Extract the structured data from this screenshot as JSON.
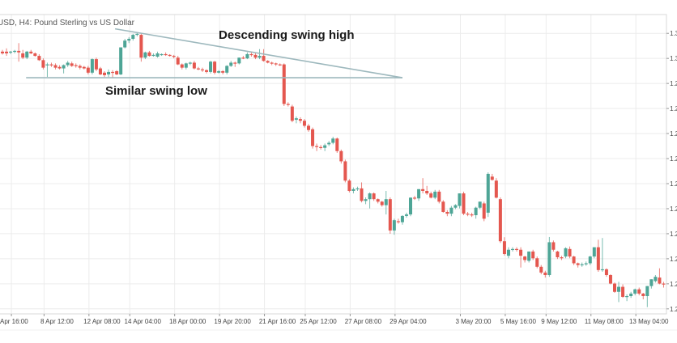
{
  "chart_data": {
    "type": "candlestick",
    "title": "USD, H4: Pound Sterling vs US Dollar",
    "colors": {
      "up": "#4ea596",
      "down": "#e4574f",
      "annotation_line": "#9db8bd",
      "grid": "#ececec"
    },
    "ylim": [
      1.198,
      1.3175
    ],
    "ytick_values": [
      1.31,
      1.3,
      1.29,
      1.28,
      1.27,
      1.26,
      1.25,
      1.24,
      1.23,
      1.22,
      1.21,
      1.2
    ],
    "ytick_labels": [
      "1.3",
      "1.3",
      "1.2",
      "1.2",
      "1.2",
      "1.2",
      "1.2",
      "1.2",
      "1.2",
      "1.2",
      "1.2",
      "1.2"
    ],
    "xtick_candle_index": [
      2,
      10,
      21,
      31,
      42,
      53,
      64,
      74,
      85,
      96,
      112,
      123,
      133,
      144,
      155
    ],
    "xtick_labels": [
      "Apr 16:00",
      "8 Apr 12:00",
      "12 Apr 08:00",
      "14 Apr 04:00",
      "18 Apr 00:00",
      "19 Apr 20:00",
      "21 Apr 16:00",
      "25 Apr 12:00",
      "27 Apr 08:00",
      "29 Apr 04:00",
      "3 May 20:00",
      "5 May 16:00",
      "9 May 12:00",
      "11 May 08:00",
      "13 May 04:00"
    ],
    "grid": true,
    "annotations": {
      "lines": [
        {
          "name": "descending-swing-high-line",
          "from": [
            27.6,
            1.3118
          ],
          "to": [
            98,
            1.2923
          ]
        },
        {
          "name": "similar-swing-low-line",
          "from": [
            5.8,
            1.2923
          ],
          "to": [
            98,
            1.2923
          ]
        }
      ],
      "labels": [
        "Descending swing high",
        "Similar swing low"
      ]
    },
    "candles_ohlc": [
      [
        1.3027,
        1.3034,
        1.3015,
        1.302
      ],
      [
        1.3027,
        1.304,
        1.301,
        1.302
      ],
      [
        1.3024,
        1.303,
        1.3017,
        1.3027
      ],
      [
        1.3027,
        1.3034,
        1.302,
        1.303
      ],
      [
        1.303,
        1.3061,
        1.2987,
        1.3024
      ],
      [
        1.302,
        1.3034,
        1.2997,
        1.3003
      ],
      [
        1.3003,
        1.303,
        1.2997,
        1.3027
      ],
      [
        1.3027,
        1.3034,
        1.3017,
        1.302
      ],
      [
        1.302,
        1.3024,
        1.3007,
        1.301
      ],
      [
        1.301,
        1.3017,
        1.299,
        1.2993
      ],
      [
        1.2993,
        1.3,
        1.2956,
        1.2963
      ],
      [
        1.2973,
        1.2983,
        1.2926,
        1.2976
      ],
      [
        1.2976,
        1.2983,
        1.2966,
        1.2973
      ],
      [
        1.2973,
        1.298,
        1.2956,
        1.2963
      ],
      [
        1.2966,
        1.2973,
        1.2956,
        1.296
      ],
      [
        1.296,
        1.2976,
        1.294,
        1.2973
      ],
      [
        1.2973,
        1.299,
        1.2966,
        1.2983
      ],
      [
        1.298,
        1.2987,
        1.2966,
        1.297
      ],
      [
        1.2973,
        1.298,
        1.2963,
        1.297
      ],
      [
        1.297,
        1.2976,
        1.2956,
        1.2963
      ],
      [
        1.2966,
        1.297,
        1.2956,
        1.296
      ],
      [
        1.2963,
        1.297,
        1.2936,
        1.2943
      ],
      [
        1.2943,
        1.3,
        1.2936,
        1.2997
      ],
      [
        1.2997,
        1.3003,
        1.2949,
        1.2956
      ],
      [
        1.296,
        1.2966,
        1.2933,
        1.2936
      ],
      [
        1.2943,
        1.2949,
        1.2926,
        1.2933
      ],
      [
        1.2936,
        1.2956,
        1.2926,
        1.2946
      ],
      [
        1.2946,
        1.2953,
        1.292,
        1.2943
      ],
      [
        1.2949,
        1.2953,
        1.2933,
        1.2936
      ],
      [
        1.2936,
        1.3044,
        1.2933,
        1.3044
      ],
      [
        1.3044,
        1.3078,
        1.304,
        1.3071
      ],
      [
        1.3071,
        1.3085,
        1.3061,
        1.3078
      ],
      [
        1.3078,
        1.3098,
        1.3071,
        1.3094
      ],
      [
        1.3094,
        1.3104,
        1.3088,
        1.3098
      ],
      [
        1.3094,
        1.3101,
        1.2987,
        1.3003
      ],
      [
        1.3003,
        1.3027,
        1.2997,
        1.3024
      ],
      [
        1.3024,
        1.303,
        1.3007,
        1.301
      ],
      [
        1.301,
        1.302,
        1.3007,
        1.3014
      ],
      [
        1.3007,
        1.3027,
        1.3003,
        1.302
      ],
      [
        1.3017,
        1.302,
        1.301,
        1.3017
      ],
      [
        1.3017,
        1.3024,
        1.301,
        1.3014
      ],
      [
        1.3014,
        1.3017,
        1.3007,
        1.301
      ],
      [
        1.301,
        1.3014,
        1.3,
        1.3007
      ],
      [
        1.3003,
        1.301,
        1.2973,
        1.2976
      ],
      [
        1.2976,
        1.298,
        1.2956,
        1.2963
      ],
      [
        1.2963,
        1.2983,
        1.2956,
        1.298
      ],
      [
        1.298,
        1.2987,
        1.2973,
        1.2983
      ],
      [
        1.2983,
        1.299,
        1.2956,
        1.296
      ],
      [
        1.296,
        1.2966,
        1.2953,
        1.2956
      ],
      [
        1.2956,
        1.2963,
        1.2946,
        1.2953
      ],
      [
        1.2953,
        1.2956,
        1.294,
        1.2946
      ],
      [
        1.2946,
        1.299,
        1.294,
        1.2987
      ],
      [
        1.2987,
        1.299,
        1.2936,
        1.2943
      ],
      [
        1.2943,
        1.2953,
        1.294,
        1.2949
      ],
      [
        1.2949,
        1.2953,
        1.2936,
        1.2943
      ],
      [
        1.2943,
        1.2973,
        1.2936,
        1.297
      ],
      [
        1.297,
        1.299,
        1.2966,
        1.2983
      ],
      [
        1.2983,
        1.2987,
        1.2966,
        1.298
      ],
      [
        1.298,
        1.3003,
        1.2976,
        1.3003
      ],
      [
        1.3003,
        1.301,
        1.2997,
        1.3
      ],
      [
        1.3,
        1.3024,
        1.2997,
        1.3017
      ],
      [
        1.3017,
        1.3024,
        1.3007,
        1.3014
      ],
      [
        1.3014,
        1.302,
        1.2997,
        1.3003
      ],
      [
        1.3003,
        1.3037,
        1.2997,
        1.301
      ],
      [
        1.301,
        1.3037,
        1.2987,
        1.299
      ],
      [
        1.299,
        1.2993,
        1.298,
        1.2983
      ],
      [
        1.2983,
        1.2987,
        1.2973,
        1.298
      ],
      [
        1.298,
        1.2983,
        1.297,
        1.2976
      ],
      [
        1.2976,
        1.298,
        1.297,
        1.2973
      ],
      [
        1.2976,
        1.298,
        1.281,
        1.2818
      ],
      [
        1.2818,
        1.2825,
        1.2808,
        1.2815
      ],
      [
        1.2808,
        1.2815,
        1.2745,
        1.2751
      ],
      [
        1.2755,
        1.2768,
        1.2741,
        1.2761
      ],
      [
        1.2758,
        1.2765,
        1.2741,
        1.2751
      ],
      [
        1.2751,
        1.2758,
        1.2724,
        1.2731
      ],
      [
        1.2731,
        1.2738,
        1.2707,
        1.2714
      ],
      [
        1.2717,
        1.2724,
        1.264,
        1.265
      ],
      [
        1.265,
        1.266,
        1.263,
        1.2646
      ],
      [
        1.2646,
        1.2654,
        1.2636,
        1.2643
      ],
      [
        1.2643,
        1.266,
        1.263,
        1.2653
      ],
      [
        1.2657,
        1.267,
        1.265,
        1.2663
      ],
      [
        1.2663,
        1.2687,
        1.2657,
        1.268
      ],
      [
        1.268,
        1.2684,
        1.2623,
        1.263
      ],
      [
        1.263,
        1.2636,
        1.258,
        1.2589
      ],
      [
        1.2589,
        1.2596,
        1.2505,
        1.2512
      ],
      [
        1.2512,
        1.2518,
        1.2465,
        1.2471
      ],
      [
        1.2471,
        1.2485,
        1.2461,
        1.2478
      ],
      [
        1.2478,
        1.2488,
        1.2471,
        1.2481
      ],
      [
        1.2481,
        1.2505,
        1.2425,
        1.2431
      ],
      [
        1.2431,
        1.2445,
        1.2418,
        1.2438
      ],
      [
        1.2438,
        1.2465,
        1.2401,
        1.2461
      ],
      [
        1.2461,
        1.2465,
        1.2431,
        1.2438
      ],
      [
        1.2438,
        1.2441,
        1.2421,
        1.2428
      ],
      [
        1.2428,
        1.2431,
        1.2408,
        1.2414
      ],
      [
        1.2414,
        1.2471,
        1.2377,
        1.2438
      ],
      [
        1.2438,
        1.2445,
        1.23,
        1.2313
      ],
      [
        1.2313,
        1.236,
        1.2296,
        1.2354
      ],
      [
        1.235,
        1.236,
        1.234,
        1.2346
      ],
      [
        1.2346,
        1.2374,
        1.2336,
        1.2371
      ],
      [
        1.2371,
        1.2384,
        1.2364,
        1.2377
      ],
      [
        1.2377,
        1.2445,
        1.237,
        1.2444
      ],
      [
        1.2444,
        1.2451,
        1.2435,
        1.2441
      ],
      [
        1.2441,
        1.2478,
        1.2431,
        1.2478
      ],
      [
        1.2478,
        1.2522,
        1.2461,
        1.2471
      ],
      [
        1.2471,
        1.2491,
        1.2455,
        1.2461
      ],
      [
        1.2461,
        1.2468,
        1.2441,
        1.2444
      ],
      [
        1.2444,
        1.2475,
        1.2438,
        1.2468
      ],
      [
        1.2468,
        1.2475,
        1.2421,
        1.2428
      ],
      [
        1.2428,
        1.2434,
        1.2384,
        1.2387
      ],
      [
        1.2387,
        1.2394,
        1.237,
        1.238
      ],
      [
        1.238,
        1.2411,
        1.237,
        1.2404
      ],
      [
        1.2404,
        1.2418,
        1.2398,
        1.2414
      ],
      [
        1.2411,
        1.2461,
        1.2401,
        1.2461
      ],
      [
        1.2461,
        1.2468,
        1.2374,
        1.238
      ],
      [
        1.238,
        1.2387,
        1.237,
        1.2377
      ],
      [
        1.2377,
        1.2384,
        1.2367,
        1.2374
      ],
      [
        1.2374,
        1.2408,
        1.236,
        1.2404
      ],
      [
        1.2404,
        1.2428,
        1.2398,
        1.2428
      ],
      [
        1.2421,
        1.2428,
        1.235,
        1.236
      ],
      [
        1.2384,
        1.2545,
        1.2367,
        1.2539
      ],
      [
        1.2528,
        1.2539,
        1.2512,
        1.2515
      ],
      [
        1.2512,
        1.2522,
        1.2441,
        1.2444
      ],
      [
        1.2438,
        1.2445,
        1.2263,
        1.227
      ],
      [
        1.227,
        1.2286,
        1.2213,
        1.2219
      ],
      [
        1.2212,
        1.2246,
        1.2202,
        1.2236
      ],
      [
        1.2236,
        1.2246,
        1.2229,
        1.2239
      ],
      [
        1.2239,
        1.2246,
        1.2229,
        1.2236
      ],
      [
        1.2236,
        1.2246,
        1.2165,
        1.2212
      ],
      [
        1.2209,
        1.2212,
        1.2185,
        1.2195
      ],
      [
        1.2192,
        1.2229,
        1.2185,
        1.2229
      ],
      [
        1.2229,
        1.2236,
        1.2195,
        1.2202
      ],
      [
        1.2202,
        1.2209,
        1.2162,
        1.2168
      ],
      [
        1.2168,
        1.2175,
        1.2138,
        1.2145
      ],
      [
        1.2145,
        1.2152,
        1.2125,
        1.2135
      ],
      [
        1.2135,
        1.2287,
        1.2128,
        1.2266
      ],
      [
        1.2266,
        1.2273,
        1.2229,
        1.2236
      ],
      [
        1.2229,
        1.2232,
        1.2199,
        1.2206
      ],
      [
        1.2206,
        1.2212,
        1.2195,
        1.2202
      ],
      [
        1.2209,
        1.2246,
        1.2202,
        1.2242
      ],
      [
        1.2239,
        1.2249,
        1.2202,
        1.2209
      ],
      [
        1.2209,
        1.2212,
        1.2175,
        1.2182
      ],
      [
        1.2182,
        1.2185,
        1.2165,
        1.2175
      ],
      [
        1.2178,
        1.2185,
        1.2168,
        1.2178
      ],
      [
        1.2178,
        1.2189,
        1.2172,
        1.2182
      ],
      [
        1.2182,
        1.2212,
        1.2175,
        1.2209
      ],
      [
        1.2209,
        1.2246,
        1.2202,
        1.2246
      ],
      [
        1.2246,
        1.2276,
        1.2148,
        1.2155
      ],
      [
        1.2155,
        1.2283,
        1.2148,
        1.2158
      ],
      [
        1.2158,
        1.2162,
        1.2128,
        1.2135
      ],
      [
        1.2135,
        1.2138,
        1.2098,
        1.2101
      ],
      [
        1.2101,
        1.2105,
        1.2064,
        1.2068
      ],
      [
        1.2068,
        1.2108,
        1.2027,
        1.2088
      ],
      [
        1.2088,
        1.2098,
        1.2044,
        1.2048
      ],
      [
        1.2048,
        1.2058,
        1.2031,
        1.2051
      ],
      [
        1.2051,
        1.2068,
        1.2044,
        1.2061
      ],
      [
        1.2061,
        1.2081,
        1.2054,
        1.2078
      ],
      [
        1.2078,
        1.2085,
        1.2054,
        1.2061
      ],
      [
        1.2061,
        1.2064,
        1.2038,
        1.2051
      ],
      [
        1.2051,
        1.2091,
        1.2007,
        1.2091
      ],
      [
        1.2091,
        1.2118,
        1.2081,
        1.2118
      ],
      [
        1.2111,
        1.2135,
        1.2105,
        1.2128
      ],
      [
        1.2125,
        1.2162,
        1.2098,
        1.2101
      ],
      [
        1.2101,
        1.2108,
        1.2085,
        1.2098
      ]
    ]
  }
}
